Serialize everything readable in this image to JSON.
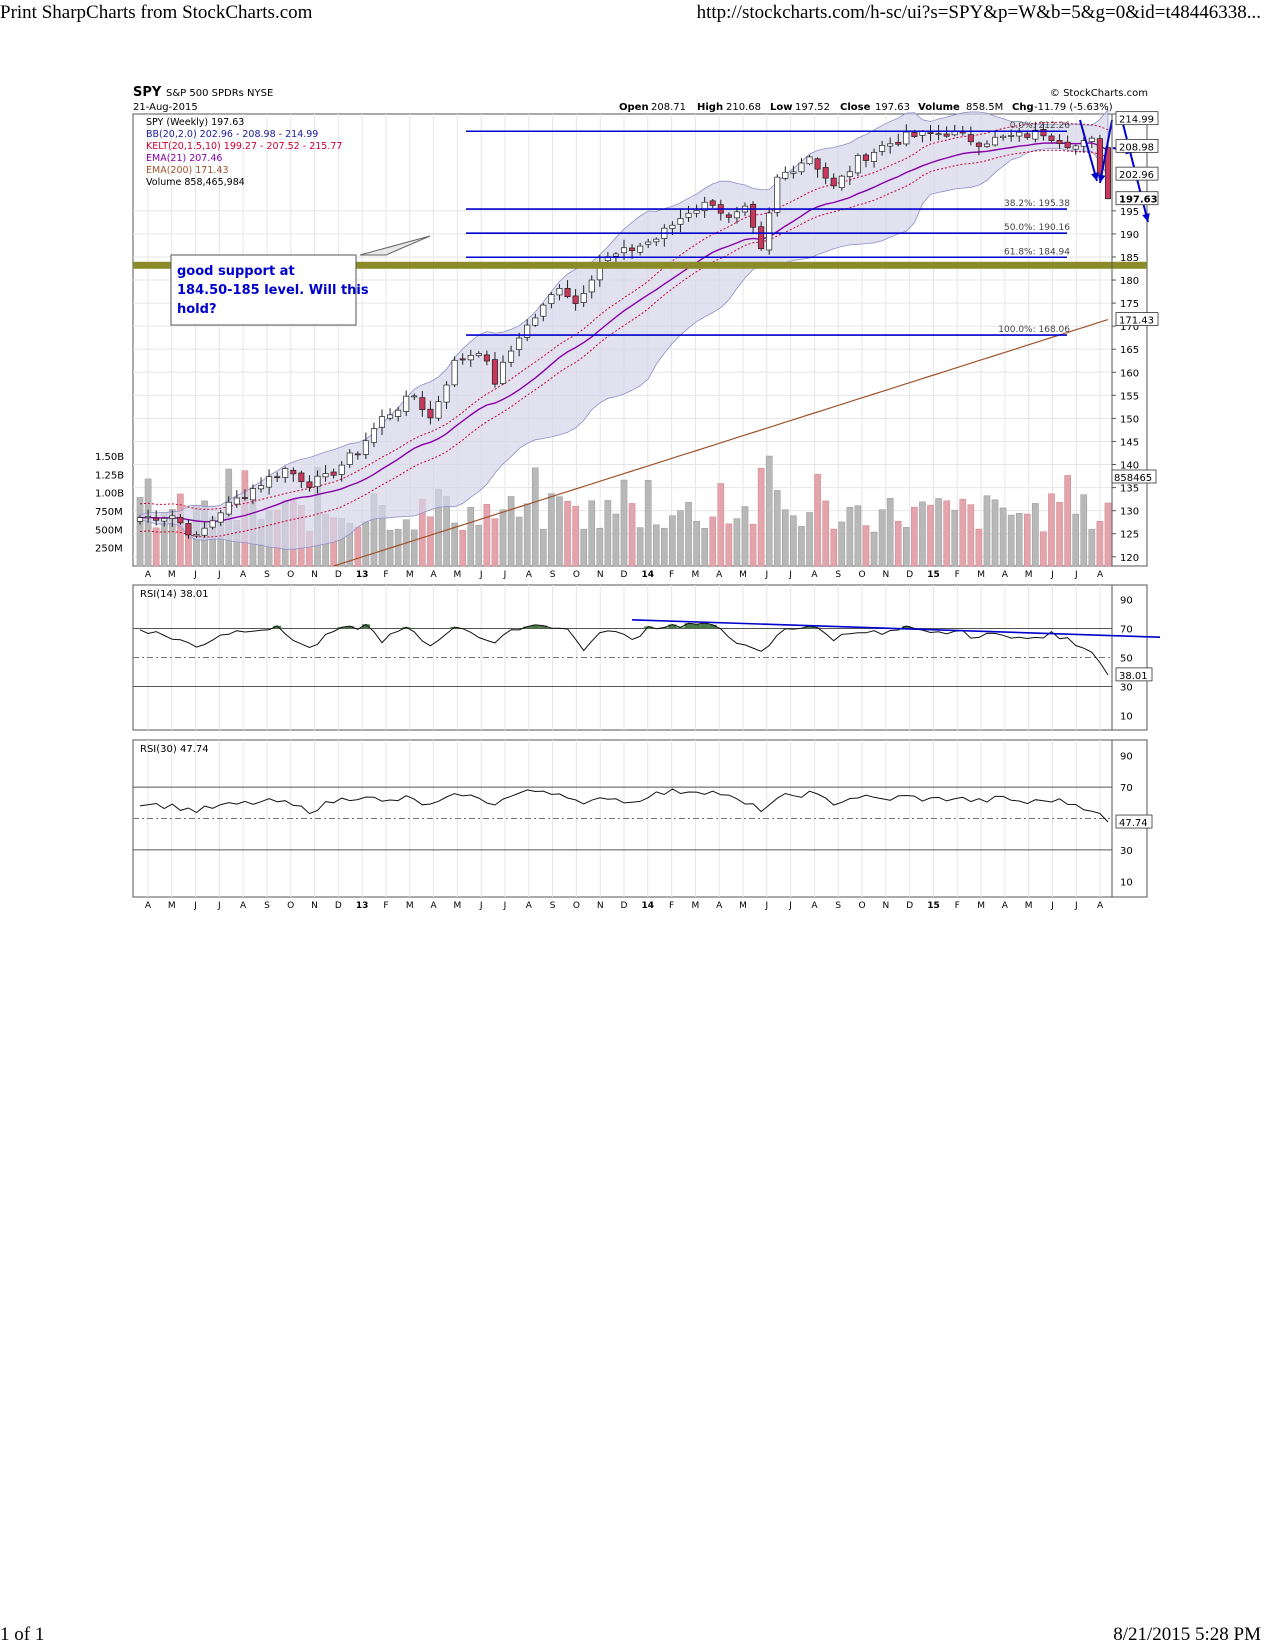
{
  "print_header": {
    "title": "Print SharpCharts from StockCharts.com",
    "url": "http://stockcharts.com/h-sc/ui?s=SPY&p=W&b=5&g=0&id=t48446338..."
  },
  "print_footer": {
    "page": "1 of 1",
    "timestamp": "8/21/2015 5:28 PM"
  },
  "chart_header": {
    "symbol": "SPY",
    "name": "S&P 500 SPDRs NYSE",
    "date": "21-Aug-2015",
    "copyright": "© StockCharts.com",
    "open_label": "Open",
    "open": "208.71",
    "high_label": "High",
    "high": "210.68",
    "low_label": "Low",
    "low": "197.52",
    "close_label": "Close",
    "close": "197.63",
    "volume_label": "Volume",
    "volume": "858.5M",
    "chg_label": "Chg",
    "chg": "-11.79 (-5.63%)"
  },
  "legend": [
    {
      "text": "SPY (Weekly) 197.63",
      "color": "#000000"
    },
    {
      "text": "BB(20,2.0) 202.96 - 208.98 - 214.99",
      "color": "#1a1a9a"
    },
    {
      "text": "KELT(20,1.5,10) 199.27 - 207.52 - 215.77",
      "color": "#cc0033"
    },
    {
      "text": "EMA(21) 207.46",
      "color": "#8800aa"
    },
    {
      "text": "EMA(200) 171.43",
      "color": "#a0522d"
    },
    {
      "text": "Volume 858,465,984",
      "color": "#000000"
    }
  ],
  "annotation": {
    "lines": [
      "good support at",
      "184.50-185 level. Will this",
      "hold?"
    ],
    "color": "#0000cc"
  },
  "colors": {
    "up": "#ffffff",
    "down": "#c8385a",
    "bb": "#1a1a9a",
    "kelt": "#cc0033",
    "ema21": "#8800aa",
    "ema200": "#a0522d",
    "fib": "#0000cc",
    "support": "#8b8b2a",
    "vol_up": "#b8b8b8",
    "vol_down": "#e4a4ac",
    "rsi_fill": "#4a7a4a"
  },
  "chart_data": [
    {
      "type": "candlestick",
      "name": "SPY weekly",
      "x_ticks": [
        "A",
        "M",
        "J",
        "J",
        "A",
        "S",
        "O",
        "N",
        "D",
        "13",
        "F",
        "M",
        "A",
        "M",
        "J",
        "J",
        "A",
        "S",
        "O",
        "N",
        "D",
        "14",
        "F",
        "M",
        "A",
        "M",
        "J",
        "J",
        "A",
        "S",
        "O",
        "N",
        "D",
        "15",
        "F",
        "M",
        "A",
        "M",
        "J",
        "J",
        "A"
      ],
      "ylim": [
        118,
        216
      ],
      "y_ticks": [
        120,
        125,
        130,
        135,
        140,
        145,
        150,
        155,
        160,
        165,
        170,
        175,
        180,
        185,
        190,
        195
      ],
      "price_labels": [
        "214.99",
        "208.98",
        "202.96",
        "197.63",
        "171.43"
      ],
      "fibonacci": [
        {
          "label": "0.0%: 212.26",
          "value": 212.26
        },
        {
          "label": "38.2%: 195.38",
          "value": 195.38
        },
        {
          "label": "50.0%: 190.16",
          "value": 190.16
        },
        {
          "label": "61.8%: 184.94",
          "value": 184.94
        },
        {
          "label": "100.0%: 168.06",
          "value": 168.06
        }
      ],
      "support_level": 183.2,
      "anchors": [
        [
          0,
          128.5
        ],
        [
          4,
          129
        ],
        [
          7,
          124
        ],
        [
          10,
          130
        ],
        [
          15,
          136
        ],
        [
          18,
          139
        ],
        [
          21,
          136
        ],
        [
          23,
          137
        ],
        [
          27,
          143
        ],
        [
          30,
          150
        ],
        [
          34,
          155
        ],
        [
          36,
          150
        ],
        [
          39,
          162
        ],
        [
          42,
          165
        ],
        [
          44,
          158
        ],
        [
          47,
          168
        ],
        [
          50,
          174
        ],
        [
          52,
          179
        ],
        [
          54,
          175
        ],
        [
          57,
          184
        ],
        [
          60,
          186
        ],
        [
          64,
          189
        ],
        [
          68,
          195
        ],
        [
          71,
          197
        ],
        [
          73,
          193
        ],
        [
          75,
          195
        ],
        [
          77,
          186
        ],
        [
          79,
          202
        ],
        [
          83,
          207
        ],
        [
          86,
          200
        ],
        [
          89,
          206
        ],
        [
          92,
          209
        ],
        [
          95,
          211
        ],
        [
          100,
          212
        ],
        [
          104,
          210
        ],
        [
          108,
          211
        ],
        [
          112,
          212
        ],
        [
          116,
          209
        ],
        [
          118,
          210
        ],
        [
          120,
          197.63
        ]
      ]
    },
    {
      "type": "bar",
      "name": "Volume",
      "y_ticks": [
        "1.50B",
        "1.25B",
        "1.00B",
        "750M",
        "500M",
        "250M"
      ],
      "last_value_label": "858465"
    },
    {
      "type": "line",
      "name": "RSI(14)",
      "title": "RSI(14) 38.01",
      "last_value": "38.01",
      "ylim": [
        0,
        100
      ],
      "y_ticks": [
        90,
        70,
        50,
        30,
        10
      ],
      "anchors": [
        [
          0,
          70
        ],
        [
          5,
          62
        ],
        [
          7,
          57
        ],
        [
          10,
          66
        ],
        [
          14,
          70
        ],
        [
          17,
          70
        ],
        [
          21,
          56
        ],
        [
          24,
          68
        ],
        [
          28,
          72
        ],
        [
          30,
          62
        ],
        [
          33,
          70
        ],
        [
          36,
          58
        ],
        [
          38,
          68
        ],
        [
          40,
          71
        ],
        [
          42,
          65
        ],
        [
          44,
          60
        ],
        [
          47,
          71
        ],
        [
          50,
          73
        ],
        [
          53,
          69
        ],
        [
          55,
          56
        ],
        [
          58,
          70
        ],
        [
          61,
          62
        ],
        [
          63,
          71
        ],
        [
          66,
          72
        ],
        [
          69,
          73
        ],
        [
          72,
          70
        ],
        [
          75,
          57
        ],
        [
          77,
          53
        ],
        [
          80,
          70
        ],
        [
          83,
          72
        ],
        [
          86,
          63
        ],
        [
          89,
          69
        ],
        [
          92,
          66
        ],
        [
          95,
          70
        ],
        [
          98,
          66
        ],
        [
          101,
          68
        ],
        [
          104,
          64
        ],
        [
          107,
          67
        ],
        [
          110,
          62
        ],
        [
          113,
          66
        ],
        [
          116,
          60
        ],
        [
          118,
          55
        ],
        [
          120,
          38.01
        ]
      ]
    },
    {
      "type": "line",
      "name": "RSI(30)",
      "title": "RSI(30) 47.74",
      "last_value": "47.74",
      "ylim": [
        0,
        100
      ],
      "y_ticks": [
        90,
        70,
        50,
        30,
        10
      ],
      "anchors": [
        [
          0,
          60
        ],
        [
          5,
          57
        ],
        [
          7,
          55
        ],
        [
          10,
          58
        ],
        [
          14,
          60
        ],
        [
          17,
          61
        ],
        [
          21,
          55
        ],
        [
          24,
          61
        ],
        [
          28,
          65
        ],
        [
          30,
          60
        ],
        [
          33,
          63
        ],
        [
          36,
          58
        ],
        [
          38,
          62
        ],
        [
          40,
          66
        ],
        [
          42,
          62
        ],
        [
          44,
          60
        ],
        [
          47,
          66
        ],
        [
          50,
          68
        ],
        [
          53,
          65
        ],
        [
          55,
          58
        ],
        [
          58,
          64
        ],
        [
          61,
          60
        ],
        [
          63,
          65
        ],
        [
          66,
          67
        ],
        [
          69,
          68
        ],
        [
          72,
          66
        ],
        [
          75,
          59
        ],
        [
          77,
          56
        ],
        [
          80,
          64
        ],
        [
          83,
          66
        ],
        [
          86,
          60
        ],
        [
          89,
          64
        ],
        [
          92,
          62
        ],
        [
          95,
          64
        ],
        [
          98,
          62
        ],
        [
          101,
          63
        ],
        [
          104,
          61
        ],
        [
          107,
          63
        ],
        [
          110,
          60
        ],
        [
          113,
          62
        ],
        [
          116,
          59
        ],
        [
          118,
          56
        ],
        [
          120,
          47.74
        ]
      ]
    }
  ]
}
